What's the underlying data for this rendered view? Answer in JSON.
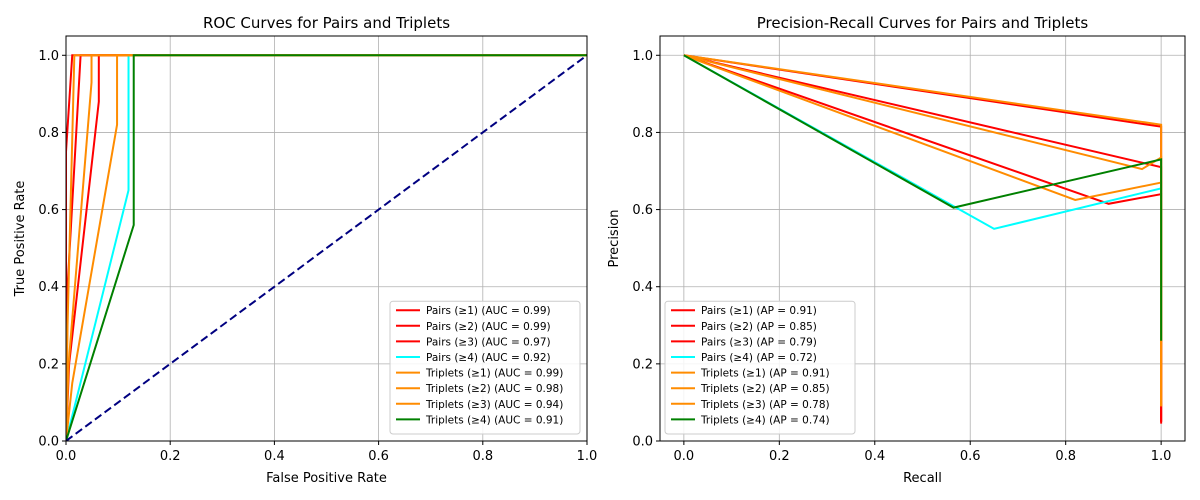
{
  "chart_data": [
    {
      "type": "line",
      "title": "ROC Curves for Pairs and Triplets",
      "xlabel": "False Positive Rate",
      "ylabel": "True Positive Rate",
      "xlim": [
        0,
        1
      ],
      "ylim": [
        0,
        1.05
      ],
      "xticks": [
        "0.0",
        "0.2",
        "0.4",
        "0.6",
        "0.8",
        "1.0"
      ],
      "yticks": [
        "0.0",
        "0.2",
        "0.4",
        "0.6",
        "0.8",
        "1.0"
      ],
      "xtick_values": [
        0,
        0.2,
        0.4,
        0.6,
        0.8,
        1.0
      ],
      "ytick_values": [
        0,
        0.2,
        0.4,
        0.6,
        0.8,
        1.0
      ],
      "grid": true,
      "legend_position": "lower-right",
      "series": [
        {
          "name": "Pairs (≥1) (AUC = 0.99)",
          "color": "#ff0000",
          "x": [
            0,
            0,
            0.012,
            1
          ],
          "y": [
            0,
            0.75,
            1,
            1
          ]
        },
        {
          "name": "Pairs (≥2) (AUC = 0.99)",
          "color": "#ff0000",
          "x": [
            0,
            0.003,
            0.028,
            1
          ],
          "y": [
            0,
            0.4,
            1,
            1
          ]
        },
        {
          "name": "Pairs (≥3) (AUC = 0.97)",
          "color": "#ff0000",
          "x": [
            0,
            0.006,
            0.063,
            0.063,
            1
          ],
          "y": [
            0,
            0.2,
            0.88,
            1,
            1
          ]
        },
        {
          "name": "Pairs (≥4) (AUC = 0.92)",
          "color": "#00ffff",
          "x": [
            0,
            0.12,
            0.12,
            1
          ],
          "y": [
            0,
            0.65,
            1,
            1
          ]
        },
        {
          "name": "Triplets (≥1) (AUC = 0.99)",
          "color": "#ff8c00",
          "x": [
            0,
            0.003,
            0.016,
            1
          ],
          "y": [
            0,
            0.3,
            1,
            1
          ]
        },
        {
          "name": "Triplets (≥2) (AUC = 0.98)",
          "color": "#ff8c00",
          "x": [
            0,
            0.005,
            0.049,
            0.049,
            1
          ],
          "y": [
            0,
            0.2,
            0.93,
            1,
            1
          ]
        },
        {
          "name": "Triplets (≥3) (AUC = 0.94)",
          "color": "#ff8c00",
          "x": [
            0,
            0.012,
            0.098,
            0.098,
            1
          ],
          "y": [
            0,
            0.15,
            0.82,
            1,
            1
          ]
        },
        {
          "name": "Triplets (≥4) (AUC = 0.91)",
          "color": "#008000",
          "x": [
            0,
            0.13,
            0.13,
            1
          ],
          "y": [
            0,
            0.56,
            1,
            1
          ]
        },
        {
          "name": "",
          "color": "#000080",
          "dashed": true,
          "x": [
            0,
            1
          ],
          "y": [
            0,
            1
          ]
        }
      ]
    },
    {
      "type": "line",
      "title": "Precision-Recall Curves for Pairs and Triplets",
      "xlabel": "Recall",
      "ylabel": "Precision",
      "xlim": [
        -0.05,
        1.05
      ],
      "ylim": [
        0,
        1.05
      ],
      "xticks": [
        "0.0",
        "0.2",
        "0.4",
        "0.6",
        "0.8",
        "1.0"
      ],
      "yticks": [
        "0.0",
        "0.2",
        "0.4",
        "0.6",
        "0.8",
        "1.0"
      ],
      "xtick_values": [
        0,
        0.2,
        0.4,
        0.6,
        0.8,
        1.0
      ],
      "ytick_values": [
        0,
        0.2,
        0.4,
        0.6,
        0.8,
        1.0
      ],
      "grid": true,
      "legend_position": "lower-left",
      "series": [
        {
          "name": "Pairs (≥1) (AP = 0.91)",
          "color": "#ff0000",
          "x": [
            0,
            1,
            1
          ],
          "y": [
            1,
            0.815,
            0.05
          ]
        },
        {
          "name": "Pairs (≥2) (AP = 0.85)",
          "color": "#ff0000",
          "x": [
            0,
            1,
            1
          ],
          "y": [
            1,
            0.71,
            0.05
          ]
        },
        {
          "name": "Pairs (≥3) (AP = 0.79)",
          "color": "#ff0000",
          "x": [
            0,
            0.89,
            1,
            1
          ],
          "y": [
            1,
            0.615,
            0.64,
            0.045
          ]
        },
        {
          "name": "Pairs (≥4) (AP = 0.72)",
          "color": "#00ffff",
          "x": [
            0,
            0.65,
            1,
            1
          ],
          "y": [
            1,
            0.55,
            0.655,
            0.26
          ]
        },
        {
          "name": "Triplets (≥1) (AP = 0.91)",
          "color": "#ff8c00",
          "x": [
            0,
            1,
            1
          ],
          "y": [
            1,
            0.82,
            0.09
          ]
        },
        {
          "name": "Triplets (≥2) (AP = 0.85)",
          "color": "#ff8c00",
          "x": [
            0,
            0.96,
            1,
            1
          ],
          "y": [
            1,
            0.705,
            0.735,
            0.09
          ]
        },
        {
          "name": "Triplets (≥3) (AP = 0.78)",
          "color": "#ff8c00",
          "x": [
            0,
            0.82,
            1,
            1
          ],
          "y": [
            1,
            0.625,
            0.67,
            0.09
          ]
        },
        {
          "name": "Triplets (≥4) (AP = 0.74)",
          "color": "#008000",
          "x": [
            0,
            0.565,
            1,
            1
          ],
          "y": [
            1,
            0.605,
            0.73,
            0.26
          ]
        }
      ]
    }
  ]
}
